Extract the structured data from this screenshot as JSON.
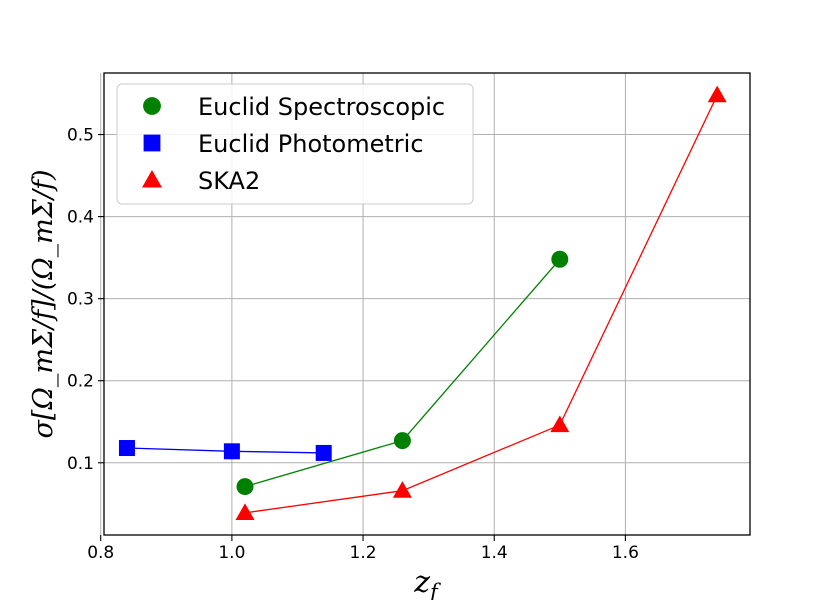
{
  "chart_data": {
    "type": "line",
    "xlabel": "z_f",
    "xlabel_main": "z",
    "xlabel_sub": "f",
    "ylabel": "σ[Ω_mΣ/f]/(Ω_mΣ/f)",
    "xlim": [
      0.805,
      1.79
    ],
    "ylim": [
      0.012,
      0.575
    ],
    "xticks": [
      0.8,
      1.0,
      1.2,
      1.4,
      1.6
    ],
    "xtick_labels": [
      "0.8",
      "1.0",
      "1.2",
      "1.4",
      "1.6"
    ],
    "yticks": [
      0.1,
      0.2,
      0.3,
      0.4,
      0.5
    ],
    "ytick_labels": [
      "0.1",
      "0.2",
      "0.3",
      "0.4",
      "0.5"
    ],
    "grid": true,
    "legend_position": "top-left",
    "series": [
      {
        "name": "Euclid Spectroscopic",
        "color": "#008000",
        "marker": "circle",
        "x": [
          1.02,
          1.26,
          1.5
        ],
        "y": [
          0.071,
          0.127,
          0.348
        ]
      },
      {
        "name": "Euclid Photometric",
        "color": "#0000ff",
        "marker": "square",
        "x": [
          0.84,
          1.0,
          1.14
        ],
        "y": [
          0.118,
          0.114,
          0.112
        ]
      },
      {
        "name": "SKA2",
        "color": "#ff0000",
        "marker": "triangle",
        "x": [
          1.02,
          1.26,
          1.5,
          1.74
        ],
        "y": [
          0.039,
          0.066,
          0.146,
          0.548
        ]
      }
    ]
  }
}
